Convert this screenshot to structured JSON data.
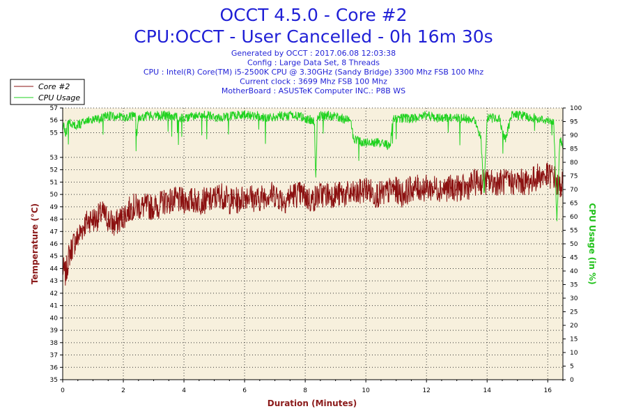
{
  "chart_data": {
    "type": "line",
    "title": "OCCT 4.5.0 - Core #2",
    "subtitle": "CPU:OCCT - User Cancelled - 0h 16m 30s",
    "info_lines": [
      "Generated by OCCT : 2017.06.08 12:03:38",
      "Config : Large Data Set, 8 Threads",
      "CPU : Intel(R) Core(TM) i5-2500K CPU @ 3.30GHz (Sandy Bridge) 3300 Mhz FSB 100 Mhz",
      "Current clock : 3699 Mhz FSB 100 Mhz",
      "MotherBoard : ASUSTeK Computer INC.: P8B WS"
    ],
    "xlabel": "Duration (Minutes)",
    "ylabel_left": "Temperature (°C)",
    "ylabel_right": "CPU Usage (in %)",
    "xlim": [
      0,
      16.5
    ],
    "xticks": [
      0,
      2,
      4,
      6,
      8,
      10,
      12,
      14,
      16
    ],
    "ylim_left": [
      35,
      57
    ],
    "yticks_left": [
      35,
      36,
      37,
      38,
      39,
      40,
      41,
      42,
      43,
      44,
      45,
      46,
      47,
      48,
      49,
      50,
      51,
      52,
      53,
      55,
      56,
      57
    ],
    "ylim_right": [
      0,
      100
    ],
    "yticks_right": [
      0,
      5,
      10,
      15,
      20,
      25,
      30,
      35,
      40,
      45,
      50,
      55,
      60,
      65,
      70,
      75,
      80,
      85,
      90,
      95,
      100
    ],
    "grid": true,
    "legend_position": "top-left",
    "background_color": "#f7f0dd",
    "series": [
      {
        "name": "Core #2",
        "axis": "left",
        "color": "#8b1010",
        "x": [
          0,
          0.1,
          0.2,
          0.35,
          0.5,
          0.7,
          0.9,
          1.1,
          1.3,
          1.5,
          1.7,
          1.9,
          2.1,
          2.3,
          2.5,
          2.8,
          3.1,
          3.4,
          3.7,
          4.0,
          4.3,
          4.6,
          4.9,
          5.2,
          5.5,
          5.8,
          6.1,
          6.4,
          6.7,
          7.0,
          7.3,
          7.6,
          7.9,
          8.2,
          8.5,
          8.8,
          9.1,
          9.4,
          9.7,
          10.0,
          10.3,
          10.6,
          10.9,
          11.2,
          11.5,
          11.8,
          12.1,
          12.4,
          12.7,
          13.0,
          13.3,
          13.6,
          13.9,
          14.2,
          14.5,
          14.8,
          15.1,
          15.4,
          15.7,
          16.0,
          16.2,
          16.35,
          16.5
        ],
        "y": [
          44,
          43.5,
          45,
          46,
          46.5,
          47.5,
          48,
          48,
          48.5,
          48,
          47.5,
          48,
          48.5,
          49,
          49,
          49,
          49,
          49.5,
          49.5,
          49.5,
          49.5,
          49.5,
          49.5,
          50,
          49.5,
          49.5,
          50,
          49.5,
          50,
          50,
          49.5,
          50,
          50,
          49.5,
          50,
          50,
          50,
          50,
          50,
          50.5,
          50,
          50,
          50.5,
          50,
          50.5,
          50.5,
          50.5,
          50.5,
          50.5,
          50.5,
          50.5,
          51,
          51,
          51,
          51,
          51,
          51,
          51,
          51.5,
          51.5,
          51.5,
          50.5,
          51
        ]
      },
      {
        "name": "CPU Usage",
        "axis": "right",
        "color": "#1fd21f",
        "x": [
          0,
          0.1,
          0.2,
          0.4,
          0.6,
          0.8,
          1.0,
          1.3,
          1.6,
          2.0,
          2.4,
          2.45,
          2.5,
          2.8,
          3.2,
          3.6,
          4.0,
          4.4,
          4.8,
          5.2,
          5.6,
          6.0,
          6.4,
          6.8,
          7.2,
          7.6,
          8.0,
          8.3,
          8.35,
          8.4,
          8.5,
          8.8,
          9.2,
          9.5,
          9.6,
          10.0,
          10.4,
          10.8,
          10.9,
          11.2,
          11.6,
          12.0,
          12.4,
          12.8,
          13.2,
          13.6,
          13.8,
          13.9,
          14.0,
          14.4,
          14.6,
          14.8,
          15.2,
          15.6,
          16.0,
          16.2,
          16.3,
          16.4,
          16.5
        ],
        "y": [
          96,
          92,
          97,
          95,
          96,
          97,
          98,
          98,
          99,
          98,
          99,
          90,
          98,
          99,
          99,
          99,
          98,
          99,
          99,
          98,
          99,
          99,
          99,
          98,
          99,
          99,
          98,
          97,
          75,
          98,
          99,
          99,
          98,
          97,
          90,
          89,
          89,
          88,
          98,
          98,
          98,
          99,
          98,
          98,
          98,
          97,
          90,
          70,
          98,
          98,
          90,
          99,
          99,
          98,
          97,
          96,
          60,
          90,
          88
        ]
      }
    ]
  }
}
